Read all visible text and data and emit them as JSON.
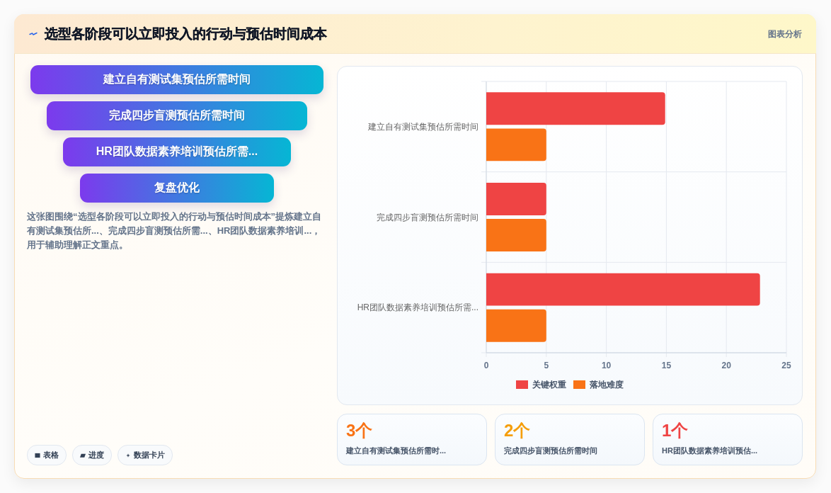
{
  "chart_data": [
    {
      "type": "other",
      "title": "选型各阶段可以立即投入的行动与预估时间成本",
      "categories": [
        "建立自有测试集预估所需时间",
        "完成四步盲测预估所需时间",
        "HR团队数据素养培训预估所需...",
        "复盘优化"
      ],
      "annotations": [
        "图表分析",
        "这张图围绕“选型各阶段可以立即投入的行动与预估时间成本”提炼建立自有测试集预估所...、完成四步盲测预估所需...、HR团队数据素养培训...，用于辅助理解正文重点。",
        "表格",
        "进度",
        "数据卡片"
      ]
    },
    {
      "type": "bar",
      "orientation": "horizontal",
      "categories": [
        "建立自有测试集预估所需时间",
        "完成四步盲测预估所需时间",
        "HR团队数据素养培训预估所需..."
      ],
      "series": [
        {
          "name": "关键权重",
          "color": "#ef4444",
          "values": [
            14.9,
            5,
            22.8
          ]
        },
        {
          "name": "落地难度",
          "color": "#f97316",
          "values": [
            5,
            5,
            5
          ]
        }
      ],
      "xlim": [
        0,
        25
      ],
      "xticks": [
        0,
        5,
        10,
        15,
        20,
        25
      ],
      "grid": true,
      "legend": "bottom"
    },
    {
      "type": "other",
      "categories": [
        "建立自有测试集预估所需时...",
        "完成四步盲测预估所需时间",
        "HR团队数据素养培训预估..."
      ],
      "values": [
        3,
        2,
        1
      ],
      "value_labels": [
        "3个",
        "2个",
        "1个"
      ],
      "colors": [
        "#f97316",
        "#f59e0b",
        "#ef4444"
      ]
    }
  ]
}
